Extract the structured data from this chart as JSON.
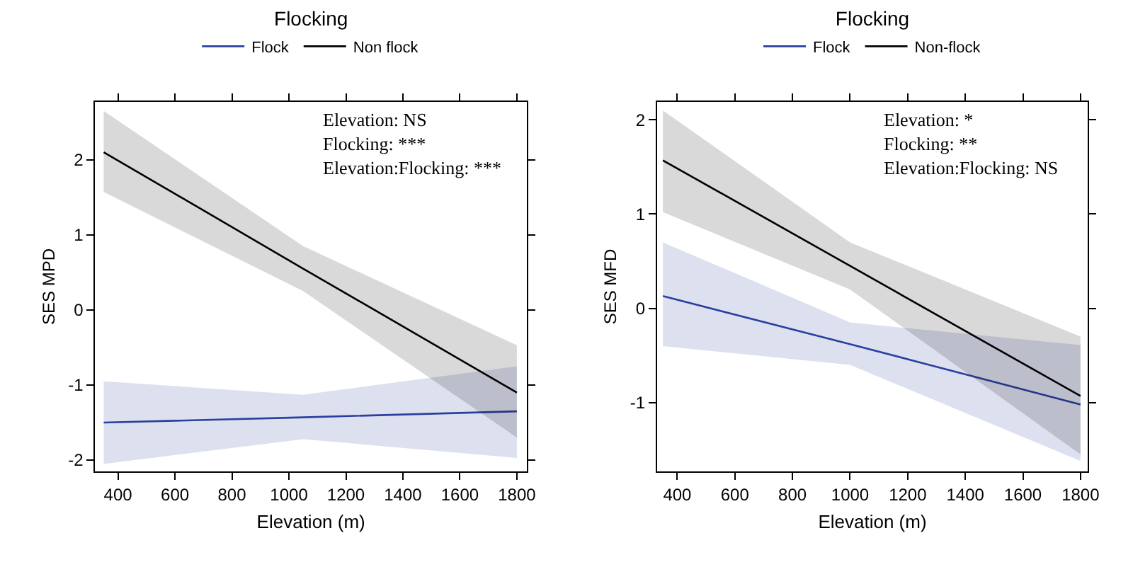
{
  "chart_data": [
    {
      "type": "line",
      "legend_title": "Flocking",
      "legend": "top",
      "xlabel": "Elevation (m)",
      "ylabel": "SES MPD",
      "xlim": [
        320,
        1835
      ],
      "xticks": [
        400,
        600,
        800,
        1000,
        1200,
        1400,
        1600,
        1800
      ],
      "ylim": [
        -2.15,
        2.77
      ],
      "yticks": [
        -2,
        -1,
        0,
        1,
        2
      ],
      "annotations": [
        "Elevation: NS",
        "Flocking: ***",
        "Elevation:Flocking: ***"
      ],
      "series": [
        {
          "name": "Flock",
          "color": "#2b3f9e",
          "x": [
            350,
            1050,
            1800
          ],
          "values": [
            -1.5,
            -1.43,
            -1.35
          ],
          "lower": [
            -2.05,
            -1.72,
            -1.97
          ],
          "upper": [
            -0.95,
            -1.13,
            -0.75
          ]
        },
        {
          "name": "Non flock",
          "color": "#000000",
          "x": [
            350,
            1050,
            1800
          ],
          "values": [
            2.1,
            0.55,
            -1.1
          ],
          "lower": [
            1.57,
            0.25,
            -1.7
          ],
          "upper": [
            2.65,
            0.85,
            -0.47
          ]
        }
      ]
    },
    {
      "type": "line",
      "legend_title": "Flocking",
      "legend": "top",
      "xlabel": "Elevation (m)",
      "ylabel": "SES MFD",
      "xlim": [
        330,
        1825
      ],
      "xticks": [
        400,
        600,
        800,
        1000,
        1200,
        1400,
        1600,
        1800
      ],
      "ylim": [
        -1.73,
        2.19
      ],
      "yticks": [
        -1,
        0,
        1,
        2
      ],
      "annotations": [
        "Elevation: *",
        "Flocking: **",
        "Elevation:Flocking: NS"
      ],
      "series": [
        {
          "name": "Flock",
          "color": "#2b3f9e",
          "x": [
            350,
            1000,
            1800
          ],
          "values": [
            0.13,
            -0.38,
            -1.02
          ],
          "lower": [
            -0.4,
            -0.6,
            -1.62
          ],
          "upper": [
            0.7,
            -0.15,
            -0.39
          ]
        },
        {
          "name": "Non-flock",
          "color": "#000000",
          "x": [
            350,
            1000,
            1800
          ],
          "values": [
            1.57,
            0.45,
            -0.93
          ],
          "lower": [
            1.02,
            0.2,
            -1.55
          ],
          "upper": [
            2.1,
            0.7,
            -0.3
          ]
        }
      ]
    }
  ]
}
